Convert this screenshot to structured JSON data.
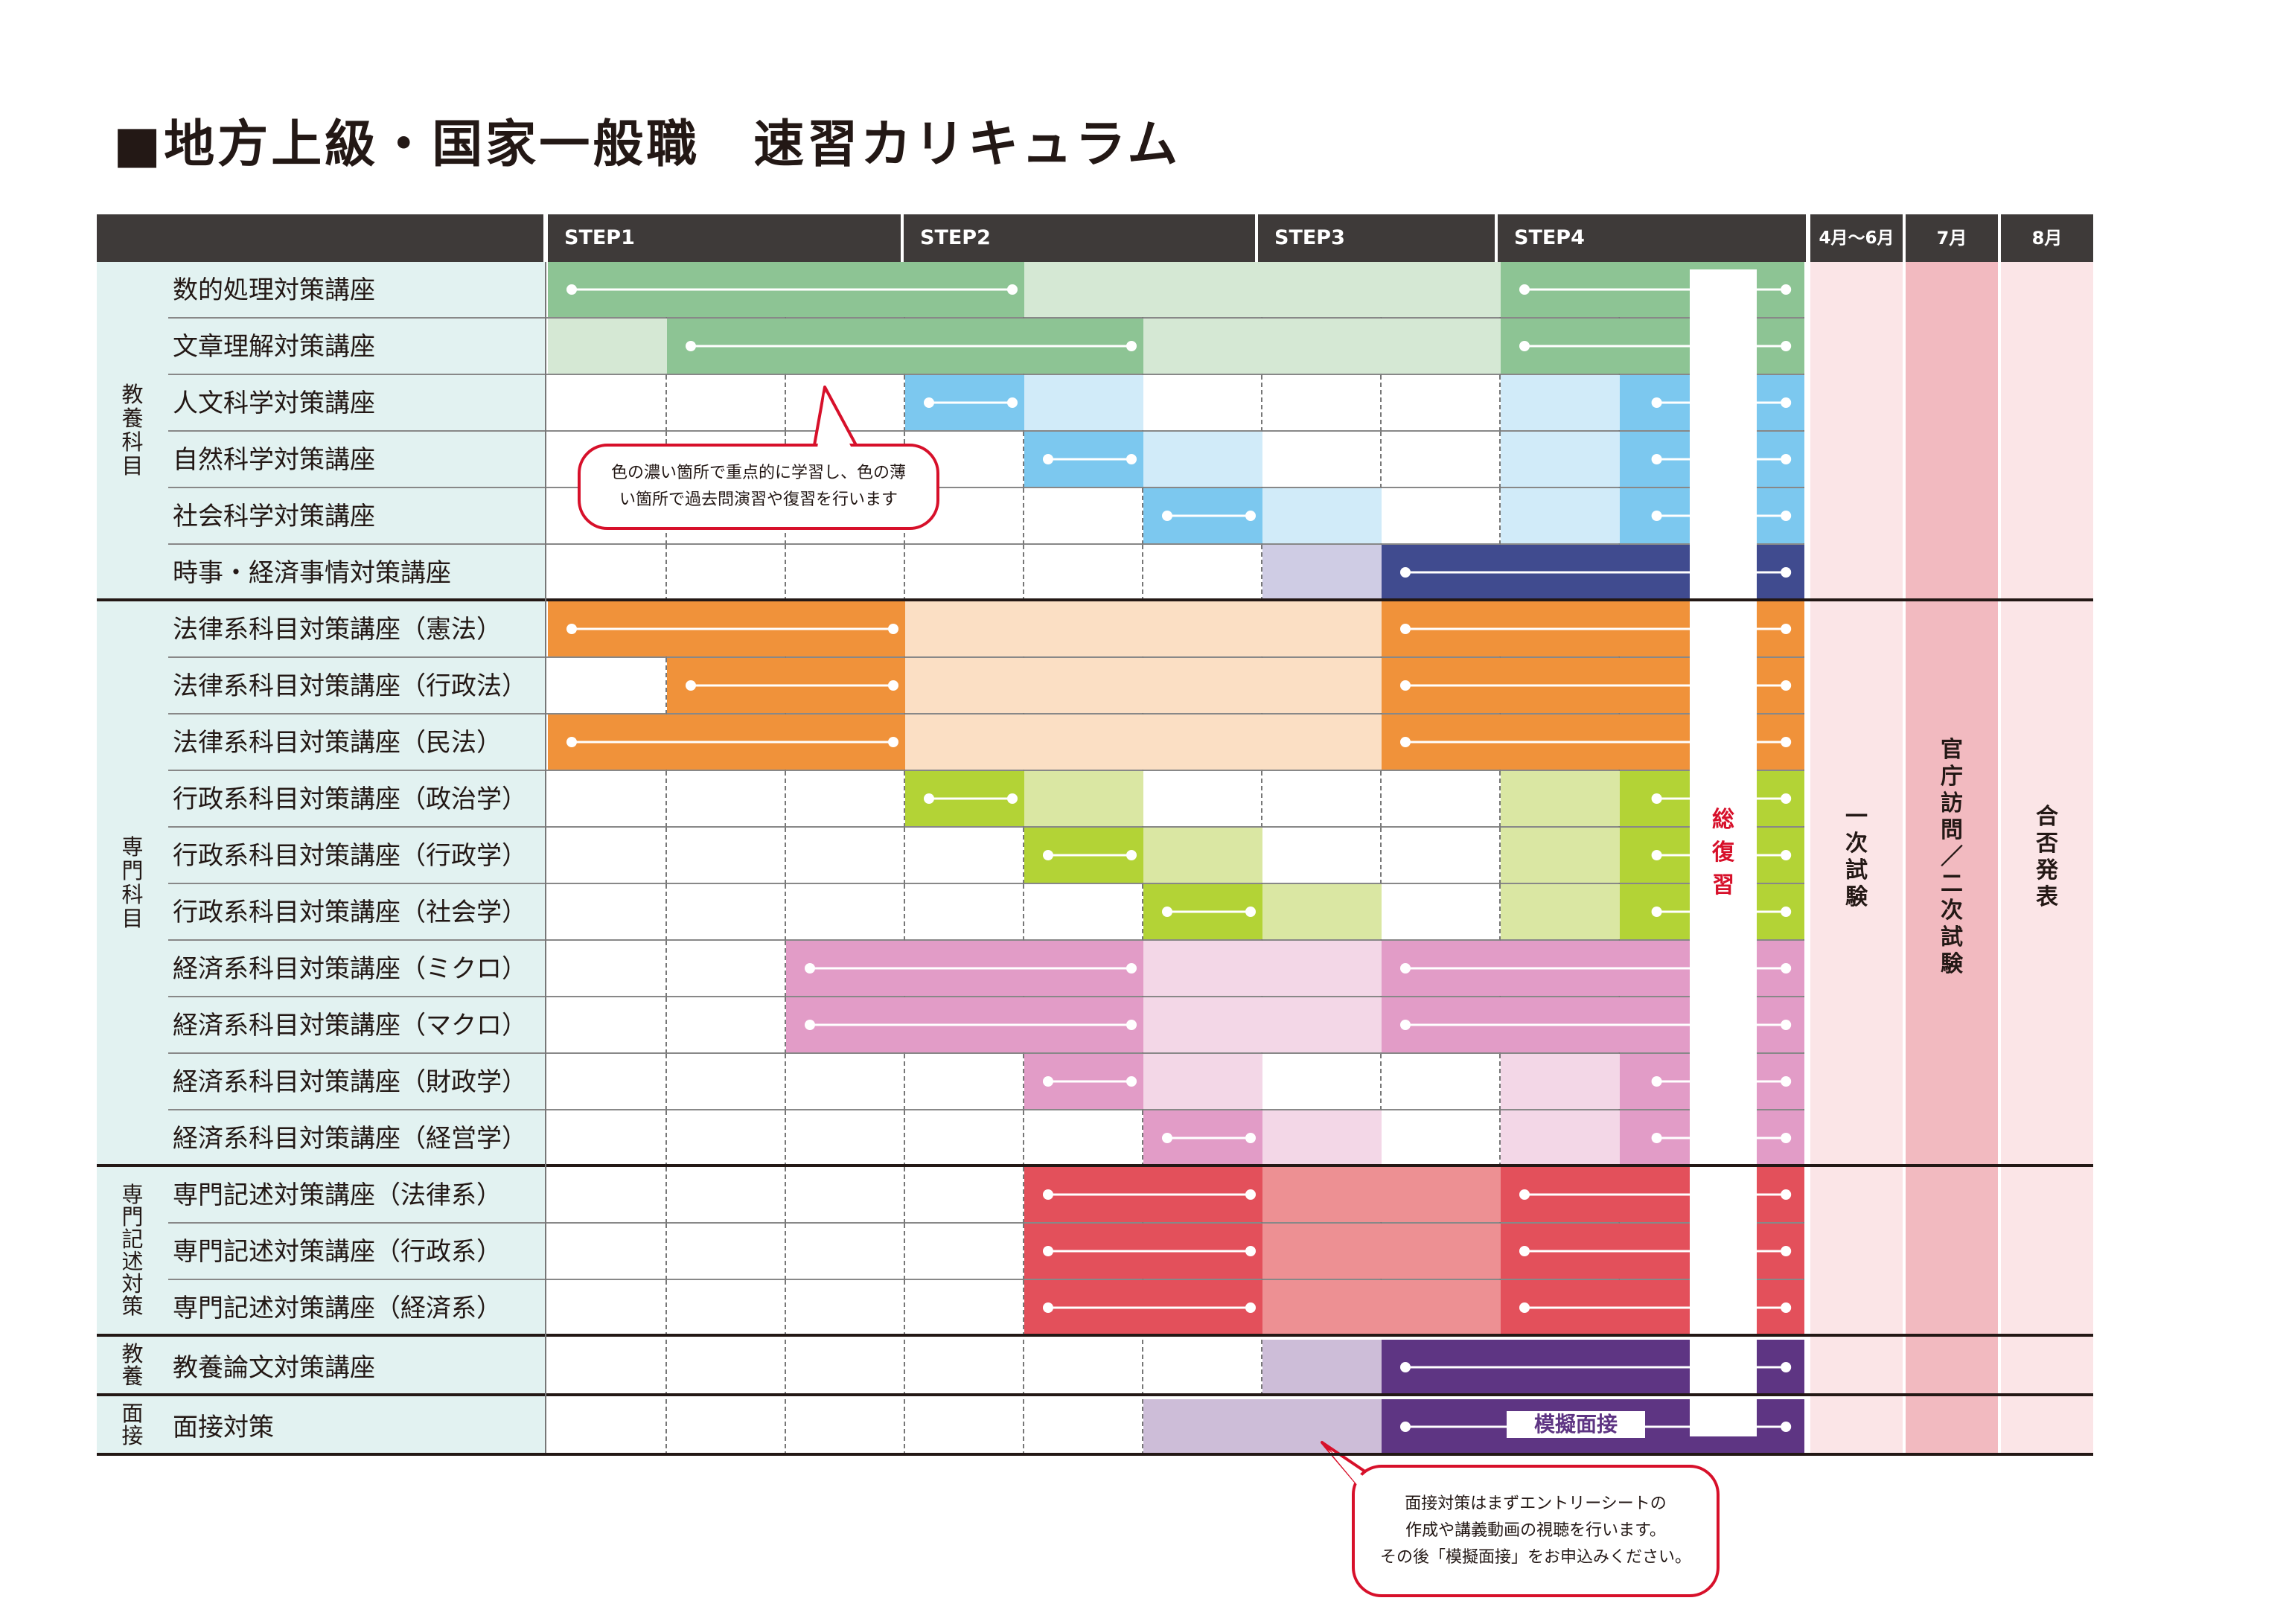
{
  "title": "■地方上級・国家一般職　速習カリキュラム",
  "header": {
    "step1": "STEP1",
    "step2": "STEP2",
    "step3": "STEP3",
    "step4": "STEP4",
    "apr_jun": "4月〜6月",
    "jul": "7月",
    "aug": "8月"
  },
  "groups": [
    {
      "label": "教養科目"
    },
    {
      "label": "専門科目"
    },
    {
      "label": "専門記述対策"
    },
    {
      "label": "教養"
    },
    {
      "label": "面接"
    }
  ],
  "rows": [
    {
      "label": "数的処理対策講座",
      "color": "#8dc494",
      "light": "#d5e8d4"
    },
    {
      "label": "文章理解対策講座",
      "color": "#8dc494",
      "light": "#d5e8d4"
    },
    {
      "label": "人文科学対策講座",
      "color": "#7cc8ef",
      "light": "#d1ebf9"
    },
    {
      "label": "自然科学対策講座",
      "color": "#7cc8ef",
      "light": "#d1ebf9"
    },
    {
      "label": "社会科学対策講座",
      "color": "#7cc8ef",
      "light": "#d1ebf9"
    },
    {
      "label": "時事・経済事情対策講座",
      "color": "#404b8f",
      "light": "#cfcce4"
    },
    {
      "label": "法律系科目対策講座（憲法）",
      "color": "#f0923a",
      "light": "#fbdfc4"
    },
    {
      "label": "法律系科目対策講座（行政法）",
      "color": "#f0923a",
      "light": "#fbdfc4"
    },
    {
      "label": "法律系科目対策講座（民法）",
      "color": "#f0923a",
      "light": "#fbdfc4"
    },
    {
      "label": "行政系科目対策講座（政治学）",
      "color": "#b3d336",
      "light": "#dae7a3"
    },
    {
      "label": "行政系科目対策講座（行政学）",
      "color": "#b3d336",
      "light": "#dae7a3"
    },
    {
      "label": "行政系科目対策講座（社会学）",
      "color": "#b3d336",
      "light": "#dae7a3"
    },
    {
      "label": "経済系科目対策講座（ミクロ）",
      "color": "#e29cc7",
      "light": "#f3d7e7"
    },
    {
      "label": "経済系科目対策講座（マクロ）",
      "color": "#e29cc7",
      "light": "#f3d7e7"
    },
    {
      "label": "経済系科目対策講座（財政学）",
      "color": "#e29cc7",
      "light": "#f3d7e7"
    },
    {
      "label": "経済系科目対策講座（経営学）",
      "color": "#e29cc7",
      "light": "#f3d7e7"
    },
    {
      "label": "専門記述対策講座（法律系）",
      "color": "#e3505b",
      "light": "#ed9093"
    },
    {
      "label": "専門記述対策講座（行政系）",
      "color": "#e3505b",
      "light": "#ed9093"
    },
    {
      "label": "専門記述対策講座（経済系）",
      "color": "#e3505b",
      "light": "#ed9093"
    },
    {
      "label": "教養論文対策講座",
      "color": "#5e3583",
      "light": "#cdbdd8"
    },
    {
      "label": "面接対策",
      "color": "#5e3583",
      "light": "#cdbdd8"
    }
  ],
  "review_bar": "総復習",
  "columns": {
    "first_exam": "一次試験",
    "second_exam": "官庁訪問／二次試験",
    "result": "合否発表"
  },
  "mock_interview": "模擬面接",
  "notes": {
    "note1_line1": "色の濃い箇所で重点的に学習し、色の薄",
    "note1_line2": "い箇所で過去問演習や復習を行います",
    "note2_line1": "面接対策はまずエントリーシートの",
    "note2_line2": "作成や講義動画の視聴を行います。",
    "note2_line3": "その後「模擬面接」をお申込みください。"
  },
  "colors": {
    "header_bg": "#3e3a39",
    "label_bg": "#e2f2f1",
    "col_apr_jun": "#fbe5e7",
    "col_jul": "#f2bac0",
    "col_aug": "#fbe5e7",
    "accent_red": "#d7102a"
  }
}
